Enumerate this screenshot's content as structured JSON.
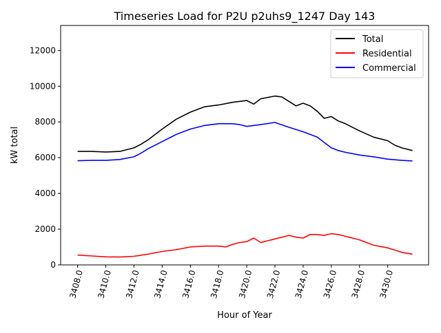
{
  "chart_data": {
    "type": "line",
    "title": "Timeseries Load for P2U p2uhs9_1247  Day 143",
    "xlabel": "Hour of Year",
    "ylabel": "kW total",
    "xlim": [
      3406.8,
      3432.9
    ],
    "ylim": [
      0,
      13400
    ],
    "xticks": [
      3408,
      3410,
      3412,
      3414,
      3416,
      3418,
      3420,
      3422,
      3424,
      3426,
      3428,
      3430
    ],
    "xtick_labels": [
      "3408.0",
      "3410.0",
      "3412.0",
      "3414.0",
      "3416.0",
      "3418.0",
      "3420.0",
      "3422.0",
      "3424.0",
      "3426.0",
      "3428.0",
      "3430.0"
    ],
    "yticks": [
      0,
      2000,
      4000,
      6000,
      8000,
      10000,
      12000
    ],
    "ytick_labels": [
      "0",
      "2000",
      "4000",
      "6000",
      "8000",
      "10000",
      "12000"
    ],
    "grid": false,
    "legend_position": "top-right",
    "series": [
      {
        "name": "Total",
        "color": "#000000",
        "x": [
          3408,
          3409,
          3410,
          3411,
          3412,
          3412.5,
          3413,
          3414,
          3415,
          3416,
          3417,
          3418,
          3419,
          3420,
          3420.5,
          3421,
          3422,
          3422.5,
          3423,
          3423.5,
          3424,
          3424.5,
          3425,
          3425.5,
          3426,
          3426.5,
          3427,
          3428,
          3429,
          3430,
          3430.5,
          3431,
          3431.75
        ],
        "y": [
          6350,
          6350,
          6320,
          6350,
          6550,
          6750,
          7000,
          7600,
          8150,
          8550,
          8850,
          8950,
          9100,
          9200,
          9000,
          9300,
          9450,
          9400,
          9150,
          8900,
          9050,
          8900,
          8600,
          8200,
          8300,
          8050,
          7900,
          7500,
          7150,
          6950,
          6700,
          6550,
          6400
        ]
      },
      {
        "name": "Residential",
        "color": "#ff0000",
        "x": [
          3408,
          3409,
          3410,
          3411,
          3412,
          3413,
          3414,
          3415,
          3416,
          3417,
          3418,
          3418.5,
          3419,
          3419.5,
          3420,
          3420.5,
          3421,
          3421.5,
          3422,
          3423,
          3423.5,
          3424,
          3424.5,
          3425,
          3425.5,
          3426,
          3426.5,
          3427,
          3428,
          3429,
          3430,
          3431,
          3431.75
        ],
        "y": [
          550,
          500,
          450,
          440,
          480,
          600,
          750,
          850,
          1000,
          1050,
          1050,
          1000,
          1150,
          1250,
          1300,
          1500,
          1250,
          1350,
          1450,
          1650,
          1550,
          1500,
          1700,
          1700,
          1650,
          1750,
          1700,
          1600,
          1400,
          1100,
          950,
          700,
          600
        ]
      },
      {
        "name": "Commercial",
        "color": "#0000ff",
        "x": [
          3408,
          3409,
          3410,
          3411,
          3412,
          3412.5,
          3413,
          3414,
          3415,
          3416,
          3417,
          3418,
          3419,
          3419.5,
          3420,
          3421,
          3422,
          3423,
          3424,
          3424.5,
          3425,
          3425.5,
          3426,
          3426.5,
          3427,
          3428,
          3429,
          3430,
          3431,
          3431.75
        ],
        "y": [
          5830,
          5850,
          5850,
          5900,
          6050,
          6250,
          6500,
          6900,
          7300,
          7600,
          7800,
          7900,
          7900,
          7850,
          7750,
          7850,
          7970,
          7700,
          7450,
          7300,
          7150,
          6850,
          6550,
          6400,
          6300,
          6150,
          6050,
          5920,
          5850,
          5820
        ]
      }
    ]
  }
}
